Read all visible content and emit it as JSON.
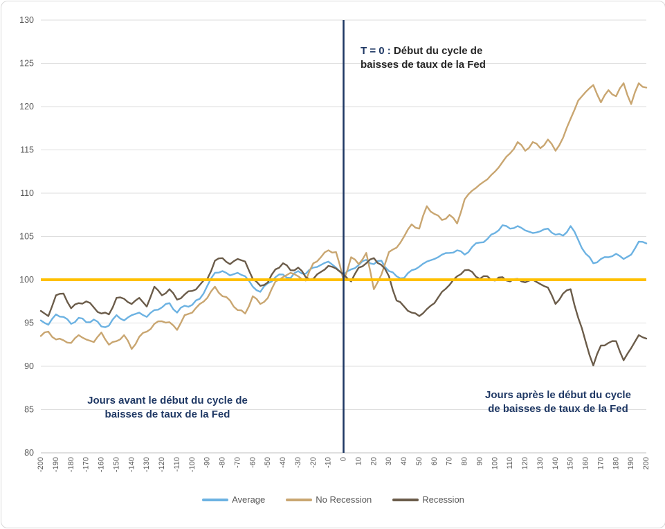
{
  "chart": {
    "background": "#ffffff",
    "border_color": "#d8d8d8",
    "grid_color": "#dedede",
    "axis_line_color": "#bfbfbf",
    "tick_label_color": "#595959",
    "accent_navy": "#1f3864",
    "accent_gold": "#ffc000"
  },
  "annotations": {
    "t0": {
      "prefix": "T = 0 :",
      "line1_rest": " Début du cycle de",
      "line2": "baisses de taux de la Fed"
    },
    "before": {
      "line1": "Jours avant le début du cycle de",
      "line2": "baisses de taux de la Fed"
    },
    "after": {
      "line1": "Jours après le début du cycle",
      "line2": "de baisses de taux de la Fed"
    }
  },
  "chart_data": {
    "type": "line",
    "title": "",
    "xlabel": "",
    "ylabel": "",
    "xlim": [
      -200,
      200
    ],
    "ylim": [
      80,
      130
    ],
    "grid": true,
    "legend_position": "bottom",
    "x_tick_labels": [
      -200,
      -190,
      -180,
      -170,
      -160,
      -150,
      -140,
      -130,
      -120,
      -110,
      -100,
      -90,
      -80,
      -70,
      -60,
      -50,
      -40,
      -30,
      -20,
      -10,
      0,
      10,
      20,
      30,
      40,
      50,
      60,
      70,
      80,
      90,
      100,
      110,
      120,
      130,
      140,
      150,
      160,
      170,
      180,
      190,
      200
    ],
    "y_tick_labels": [
      80,
      85,
      90,
      95,
      100,
      105,
      110,
      115,
      120,
      125,
      130
    ],
    "reference_lines": {
      "horizontal": {
        "value": 100,
        "color": "#ffc000"
      },
      "vertical": {
        "value": 0,
        "color": "#1f3864"
      }
    },
    "x": [
      -200,
      -195,
      -190,
      -185,
      -180,
      -175,
      -170,
      -165,
      -160,
      -155,
      -150,
      -145,
      -140,
      -135,
      -130,
      -125,
      -120,
      -115,
      -110,
      -105,
      -100,
      -95,
      -90,
      -85,
      -80,
      -75,
      -70,
      -65,
      -60,
      -55,
      -50,
      -45,
      -40,
      -35,
      -30,
      -25,
      -20,
      -15,
      -10,
      -5,
      0,
      5,
      10,
      15,
      20,
      25,
      30,
      35,
      40,
      45,
      50,
      55,
      60,
      65,
      70,
      75,
      80,
      85,
      90,
      95,
      100,
      105,
      110,
      115,
      120,
      125,
      130,
      135,
      140,
      145,
      150,
      155,
      160,
      165,
      170,
      175,
      180,
      185,
      190,
      195,
      200
    ],
    "series": [
      {
        "name": "Average",
        "color": "#6cb2e2",
        "values": [
          95.3,
          94.8,
          96.0,
          95.7,
          94.9,
          95.6,
          95.1,
          95.4,
          94.6,
          94.7,
          95.9,
          95.3,
          95.9,
          96.2,
          95.7,
          96.5,
          96.8,
          97.3,
          96.2,
          97.0,
          97.1,
          97.8,
          99.3,
          100.8,
          101.0,
          100.5,
          100.8,
          100.4,
          99.2,
          98.6,
          99.6,
          100.3,
          100.6,
          100.2,
          101.0,
          100.7,
          101.4,
          101.7,
          102.1,
          101.4,
          100.6,
          101.2,
          101.7,
          102.3,
          101.8,
          102.2,
          101.0,
          100.4,
          100.2,
          101.1,
          101.5,
          102.1,
          102.4,
          102.9,
          103.1,
          103.4,
          102.9,
          103.8,
          104.3,
          104.7,
          105.4,
          106.3,
          105.9,
          106.2,
          105.7,
          105.4,
          105.6,
          105.9,
          105.2,
          105.1,
          106.2,
          104.6,
          103.0,
          101.9,
          102.4,
          102.6,
          103.0,
          102.4,
          102.9,
          104.4,
          104.2
        ]
      },
      {
        "name": "No Recession",
        "color": "#c9a671",
        "values": [
          93.5,
          94.0,
          93.1,
          93.0,
          92.7,
          93.6,
          93.1,
          92.8,
          93.9,
          92.5,
          92.9,
          93.6,
          92.0,
          93.4,
          94.0,
          94.9,
          95.2,
          95.1,
          94.2,
          95.9,
          96.2,
          97.2,
          97.9,
          99.2,
          98.1,
          97.6,
          96.5,
          96.1,
          98.1,
          97.2,
          97.9,
          99.8,
          100.3,
          100.8,
          100.4,
          99.9,
          101.9,
          102.6,
          103.4,
          103.2,
          99.9,
          102.6,
          101.8,
          103.1,
          98.9,
          100.6,
          103.2,
          103.7,
          105.0,
          106.4,
          105.9,
          108.5,
          107.6,
          106.9,
          107.5,
          106.5,
          109.3,
          110.3,
          111.0,
          111.6,
          112.5,
          113.6,
          114.6,
          115.9,
          114.9,
          115.9,
          115.2,
          116.2,
          114.9,
          116.4,
          118.6,
          120.7,
          121.7,
          122.5,
          120.5,
          121.9,
          121.2,
          122.7,
          120.3,
          122.7,
          122.2
        ]
      },
      {
        "name": "Recession",
        "color": "#6b5c4a",
        "values": [
          96.4,
          95.8,
          98.2,
          98.4,
          96.7,
          97.3,
          97.5,
          96.8,
          96.1,
          96.0,
          97.9,
          97.8,
          97.2,
          97.9,
          96.9,
          99.2,
          98.2,
          98.9,
          97.7,
          98.3,
          98.7,
          99.4,
          100.1,
          102.2,
          102.5,
          101.8,
          102.4,
          102.1,
          100.1,
          99.3,
          99.7,
          101.2,
          101.9,
          101.1,
          101.4,
          100.3,
          100.1,
          100.9,
          101.6,
          101.3,
          100.6,
          99.8,
          101.4,
          101.9,
          102.5,
          101.7,
          100.4,
          97.6,
          96.9,
          96.2,
          95.8,
          96.6,
          97.3,
          98.6,
          99.4,
          100.4,
          101.1,
          100.9,
          100.1,
          100.4,
          99.9,
          100.3,
          99.8,
          100.1,
          99.7,
          100.0,
          99.5,
          99.1,
          97.2,
          98.4,
          98.9,
          95.6,
          92.8,
          90.1,
          92.4,
          92.7,
          92.9,
          90.7,
          92.1,
          93.6,
          93.2
        ]
      }
    ]
  }
}
